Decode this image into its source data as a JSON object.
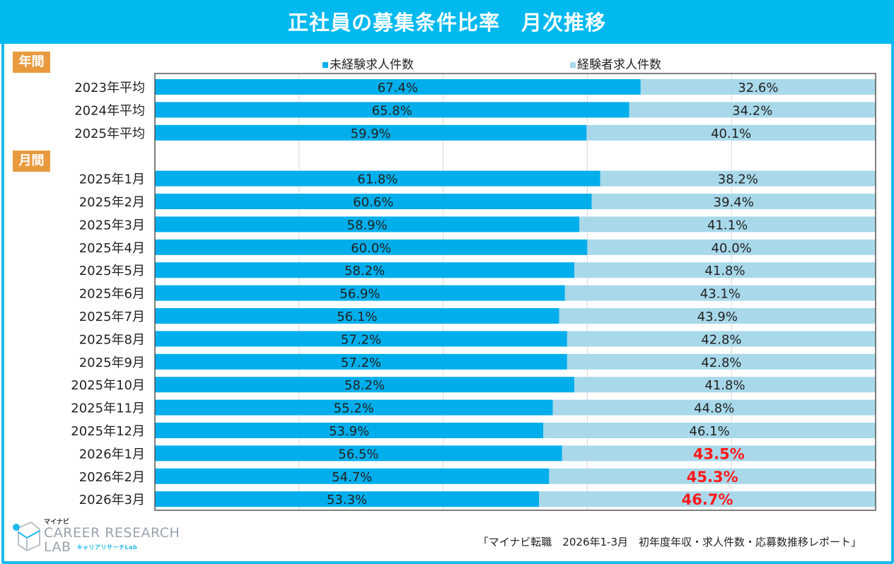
{
  "title": "正社員の募集条件比率　月次推移",
  "sections": {
    "annual": "年間",
    "monthly": "月間"
  },
  "colors": {
    "inexperienced": "#00aeeb",
    "experienced": "#a8d8ea",
    "highlight": "#ff1a1a",
    "header": "#00b9ef",
    "section": "#e99a3e"
  },
  "chart_data": {
    "type": "bar",
    "orientation": "horizontal",
    "stacked": true,
    "percent": true,
    "xlim": [
      0,
      100
    ],
    "grid": true,
    "legend_position": "top",
    "categories": [
      "2023年平均",
      "2024年平均",
      "2025年平均",
      "",
      "2025年1月",
      "2025年2月",
      "2025年3月",
      "2025年4月",
      "2025年5月",
      "2025年6月",
      "2025年7月",
      "2025年8月",
      "2025年9月",
      "2025年10月",
      "2025年11月",
      "2025年12月",
      "2026年1月",
      "2026年2月",
      "2026年3月"
    ],
    "series": [
      {
        "name": "未経験求人件数",
        "values": [
          67.4,
          65.8,
          59.9,
          null,
          61.8,
          60.6,
          58.9,
          60.0,
          58.2,
          56.9,
          56.1,
          57.2,
          57.2,
          58.2,
          55.2,
          53.9,
          56.5,
          54.7,
          53.3
        ],
        "labels": [
          "67.4%",
          "65.8%",
          "59.9%",
          "",
          "61.8%",
          "60.6%",
          "58.9%",
          "60.0%",
          "58.2%",
          "56.9%",
          "56.1%",
          "57.2%",
          "57.2%",
          "58.2%",
          "55.2%",
          "53.9%",
          "56.5%",
          "54.7%",
          "53.3%"
        ]
      },
      {
        "name": "経験者求人件数",
        "values": [
          32.6,
          34.2,
          40.1,
          null,
          38.2,
          39.4,
          41.1,
          40.0,
          41.8,
          43.1,
          43.9,
          42.8,
          42.8,
          41.8,
          44.8,
          46.1,
          43.5,
          45.3,
          46.7
        ],
        "labels": [
          "32.6%",
          "34.2%",
          "40.1%",
          "",
          "38.2%",
          "39.4%",
          "41.1%",
          "40.0%",
          "41.8%",
          "43.1%",
          "43.9%",
          "42.8%",
          "42.8%",
          "41.8%",
          "44.8%",
          "46.1%",
          "43.5%",
          "45.3%",
          "46.7%"
        ],
        "highlighted": [
          16,
          17,
          18
        ]
      }
    ]
  },
  "footer": "「マイナビ転職　2026年1-3月　初年度年収・求人件数・応募数推移レポート」",
  "logo": {
    "brand": "マイナビ",
    "name": "CAREER RESEARCH",
    "name2": "LAB",
    "kana": "キャリアリサーチLab"
  }
}
